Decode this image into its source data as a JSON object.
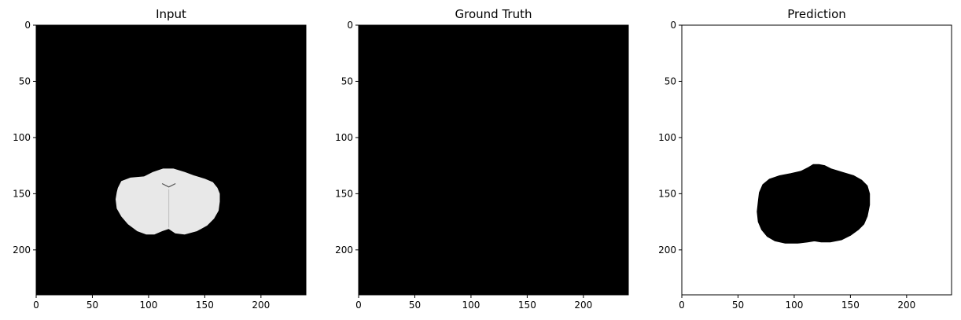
{
  "chart_data": [
    {
      "type": "image",
      "title": "Input",
      "xlim": [
        0,
        240
      ],
      "ylim": [
        240,
        0
      ],
      "xticks": [
        0,
        50,
        100,
        150,
        200
      ],
      "yticks": [
        0,
        50,
        100,
        150,
        200
      ],
      "background": "#000000",
      "content": "grayscale brain slice, bright region",
      "content_color": "#e8e8e8",
      "region_outline": [
        [
          73,
          145
        ],
        [
          76,
          139
        ],
        [
          84,
          136
        ],
        [
          96,
          135
        ],
        [
          104,
          131
        ],
        [
          113,
          128
        ],
        [
          122,
          128
        ],
        [
          132,
          131
        ],
        [
          140,
          134
        ],
        [
          150,
          137
        ],
        [
          157,
          140
        ],
        [
          161,
          145
        ],
        [
          163,
          150
        ],
        [
          163,
          157
        ],
        [
          162,
          165
        ],
        [
          158,
          172
        ],
        [
          152,
          178
        ],
        [
          143,
          183
        ],
        [
          132,
          186
        ],
        [
          124,
          185
        ],
        [
          118,
          181
        ],
        [
          112,
          183
        ],
        [
          105,
          186
        ],
        [
          98,
          186
        ],
        [
          90,
          183
        ],
        [
          82,
          177
        ],
        [
          76,
          170
        ],
        [
          72,
          163
        ],
        [
          71,
          155
        ],
        [
          72,
          149
        ]
      ]
    },
    {
      "type": "image",
      "title": "Ground Truth",
      "xlim": [
        0,
        240
      ],
      "ylim": [
        240,
        0
      ],
      "xticks": [
        0,
        50,
        100,
        150,
        200
      ],
      "yticks": [
        0,
        50,
        100,
        150,
        200
      ],
      "background": "#000000",
      "content": "empty mask"
    },
    {
      "type": "image",
      "title": "Prediction",
      "xlim": [
        0,
        240
      ],
      "ylim": [
        240,
        0
      ],
      "xticks": [
        0,
        50,
        100,
        150,
        200
      ],
      "yticks": [
        0,
        50,
        100,
        150,
        200
      ],
      "background": "#ffffff",
      "content": "predicted mask, dark region",
      "content_color": "#000000",
      "region_outline": [
        [
          68,
          157
        ],
        [
          69,
          149
        ],
        [
          72,
          142
        ],
        [
          78,
          137
        ],
        [
          87,
          134
        ],
        [
          97,
          132
        ],
        [
          106,
          130
        ],
        [
          112,
          127
        ],
        [
          117,
          124
        ],
        [
          122,
          124
        ],
        [
          127,
          125
        ],
        [
          133,
          128
        ],
        [
          143,
          131
        ],
        [
          153,
          134
        ],
        [
          160,
          138
        ],
        [
          165,
          143
        ],
        [
          167,
          150
        ],
        [
          167,
          160
        ],
        [
          165,
          170
        ],
        [
          162,
          177
        ],
        [
          157,
          182
        ],
        [
          150,
          187
        ],
        [
          142,
          191
        ],
        [
          132,
          193
        ],
        [
          124,
          193
        ],
        [
          118,
          192
        ],
        [
          112,
          193
        ],
        [
          103,
          194
        ],
        [
          92,
          194
        ],
        [
          83,
          192
        ],
        [
          76,
          188
        ],
        [
          71,
          182
        ],
        [
          68,
          175
        ],
        [
          67,
          166
        ]
      ]
    }
  ]
}
